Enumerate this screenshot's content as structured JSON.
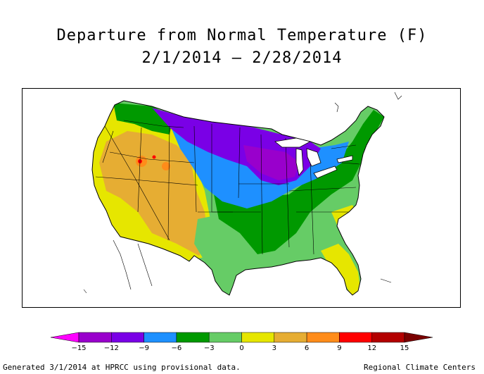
{
  "title": "Departure from Normal Temperature (F)",
  "subtitle": "2/1/2014 – 2/28/2014",
  "legend": {
    "ticks": [
      "−15",
      "−12",
      "−9",
      "−6",
      "−3",
      "0",
      "3",
      "6",
      "9",
      "12",
      "15"
    ],
    "colors": [
      "#ff00ff",
      "#9900cc",
      "#7a00e6",
      "#1e90ff",
      "#009900",
      "#66cc66",
      "#e6e600",
      "#e6ad33",
      "#ff8c1a",
      "#ff0000",
      "#b30000",
      "#7a0000"
    ]
  },
  "footer_left": "Generated 3/1/2014 at HPRCC using provisional data.",
  "footer_right": "Regional Climate Centers"
}
